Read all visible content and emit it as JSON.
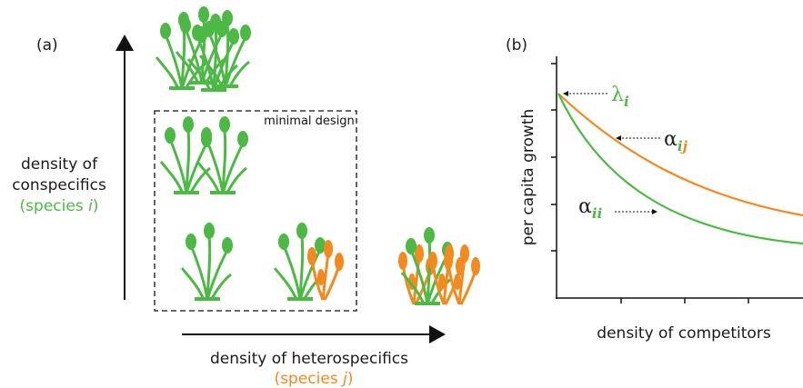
{
  "panel_a": {
    "label": "(a)",
    "box_label": "minimal design",
    "y_axis": {
      "line1": "density of",
      "line2": "conspecifics",
      "species_open": "(species ",
      "species_letter": "i",
      "species_close": ")"
    },
    "x_axis": {
      "line1": "density of heterospecifics",
      "species_open": "(species ",
      "species_letter": "j",
      "species_close": ")"
    }
  },
  "panel_b": {
    "label": "(b)",
    "y_axis_label": "per capita growth",
    "x_axis_label": "density of competitors",
    "lambda": {
      "symbol": "λ",
      "sub": "i"
    },
    "alpha_ij": {
      "symbol": "α",
      "sub1": "i",
      "sub2": "j"
    },
    "alpha_ii": {
      "symbol": "α",
      "sub1": "i",
      "sub2": "i"
    }
  }
}
